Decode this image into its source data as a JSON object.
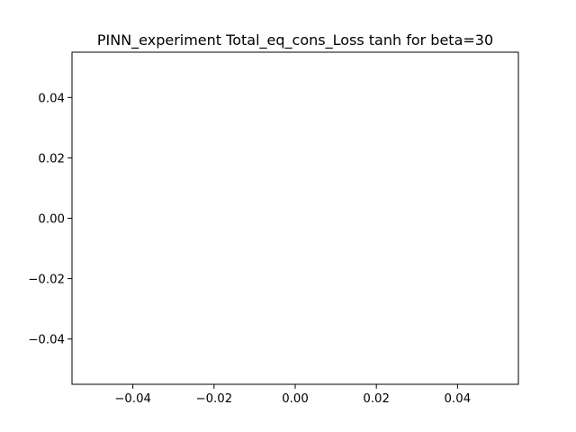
{
  "chart_data": {
    "type": "line",
    "title": "PINN_experiment Total_eq_cons_Loss tanh for beta=30",
    "xlabel": "",
    "ylabel": "",
    "xlim": [
      -0.055,
      0.055
    ],
    "ylim": [
      -0.055,
      0.055
    ],
    "x_ticks": [
      -0.04,
      -0.02,
      0.0,
      0.02,
      0.04
    ],
    "x_tick_labels": [
      "−0.04",
      "−0.02",
      "0.00",
      "0.02",
      "0.04"
    ],
    "y_ticks": [
      -0.04,
      -0.02,
      0.0,
      0.02,
      0.04
    ],
    "y_tick_labels": [
      "−0.04",
      "−0.02",
      "0.00",
      "0.02",
      "0.04"
    ],
    "series": [],
    "grid": false,
    "legend": "none"
  }
}
